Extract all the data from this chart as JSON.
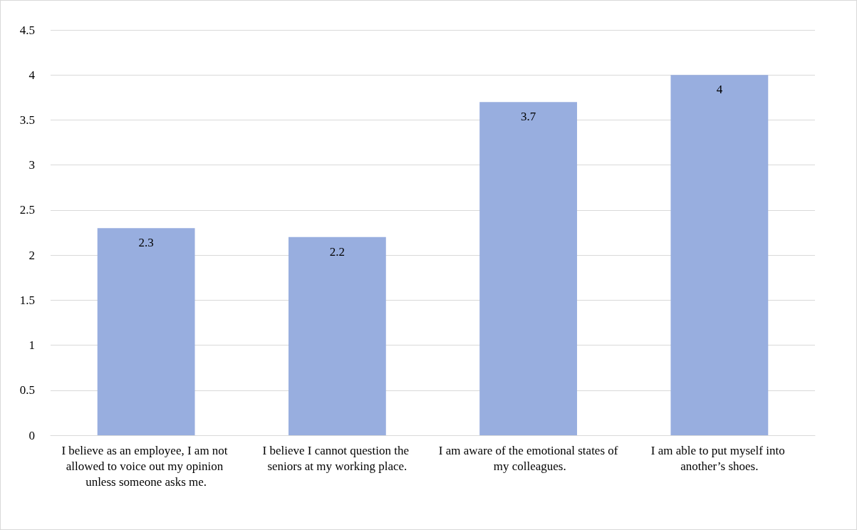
{
  "chart_data": {
    "type": "bar",
    "categories": [
      "I believe as an employee, I am not allowed to voice out my opinion unless someone asks me.",
      "I believe I cannot question the seniors at my working place.",
      "I am aware of the emotional states of my colleagues.",
      "I am able to put myself into another’s shoes."
    ],
    "values": [
      2.3,
      2.2,
      3.7,
      4
    ],
    "color": "#98aedf",
    "ylim": [
      0,
      4.5
    ],
    "yticks": [
      0,
      0.5,
      1,
      1.5,
      2,
      2.5,
      3,
      3.5,
      4,
      4.5
    ],
    "grid": "y",
    "data_labels": true
  }
}
